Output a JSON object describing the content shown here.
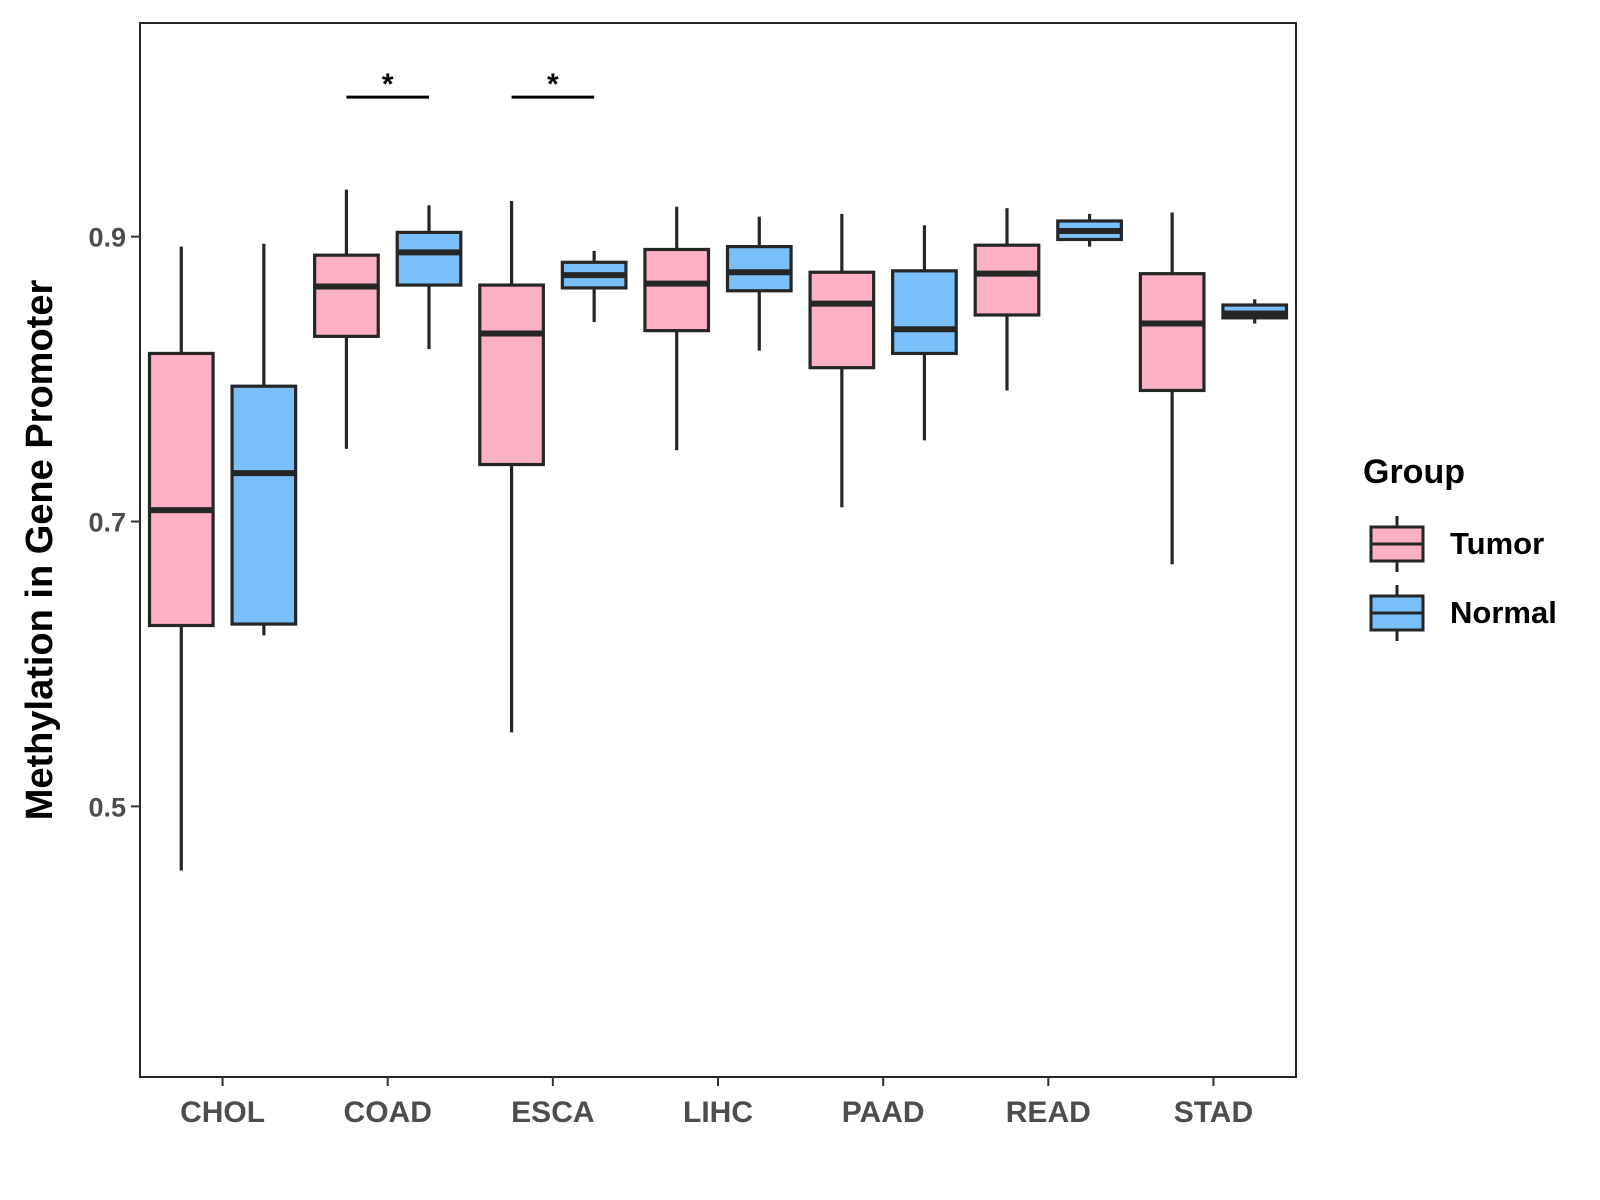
{
  "chart_data": {
    "type": "boxplot",
    "title": "",
    "xlabel": "",
    "ylabel": "Methylation in Gene Promoter",
    "ylim": [
      0.31,
      1.05
    ],
    "yticks": [
      0.5,
      0.7,
      0.9
    ],
    "ytick_labels": [
      "0.5",
      "0.7",
      "0.9"
    ],
    "grid": false,
    "categories": [
      "CHOL",
      "COAD",
      "ESCA",
      "LIHC",
      "PAAD",
      "READ",
      "STAD"
    ],
    "colors": {
      "Tumor": "#fbb0c3",
      "Normal": "#79c0fb",
      "outline": "#262626"
    },
    "series": [
      {
        "name": "Tumor",
        "boxes": [
          {
            "min": 0.455,
            "q1": 0.627,
            "median": 0.708,
            "q3": 0.818,
            "max": 0.893
          },
          {
            "min": 0.751,
            "q1": 0.83,
            "median": 0.865,
            "q3": 0.887,
            "max": 0.933
          },
          {
            "min": 0.552,
            "q1": 0.74,
            "median": 0.832,
            "q3": 0.866,
            "max": 0.925
          },
          {
            "min": 0.75,
            "q1": 0.834,
            "median": 0.867,
            "q3": 0.891,
            "max": 0.921
          },
          {
            "min": 0.71,
            "q1": 0.808,
            "median": 0.853,
            "q3": 0.875,
            "max": 0.916
          },
          {
            "min": 0.792,
            "q1": 0.845,
            "median": 0.874,
            "q3": 0.894,
            "max": 0.92
          },
          {
            "min": 0.67,
            "q1": 0.792,
            "median": 0.839,
            "q3": 0.874,
            "max": 0.917
          }
        ]
      },
      {
        "name": "Normal",
        "boxes": [
          {
            "min": 0.62,
            "q1": 0.628,
            "median": 0.734,
            "q3": 0.795,
            "max": 0.895
          },
          {
            "min": 0.821,
            "q1": 0.866,
            "median": 0.889,
            "q3": 0.903,
            "max": 0.922
          },
          {
            "min": 0.84,
            "q1": 0.864,
            "median": 0.873,
            "q3": 0.882,
            "max": 0.89
          },
          {
            "min": 0.82,
            "q1": 0.862,
            "median": 0.875,
            "q3": 0.893,
            "max": 0.914
          },
          {
            "min": 0.757,
            "q1": 0.818,
            "median": 0.835,
            "q3": 0.876,
            "max": 0.908
          },
          {
            "min": 0.893,
            "q1": 0.898,
            "median": 0.904,
            "q3": 0.911,
            "max": 0.916
          },
          {
            "min": 0.839,
            "q1": 0.843,
            "median": 0.846,
            "q3": 0.852,
            "max": 0.856
          }
        ]
      }
    ],
    "annotations": [
      {
        "category": "COAD",
        "label": "*",
        "y": 0.998
      },
      {
        "category": "ESCA",
        "label": "*",
        "y": 0.998
      }
    ],
    "legend": {
      "title": "Group",
      "placement": "right",
      "entries": [
        "Tumor",
        "Normal"
      ]
    }
  }
}
